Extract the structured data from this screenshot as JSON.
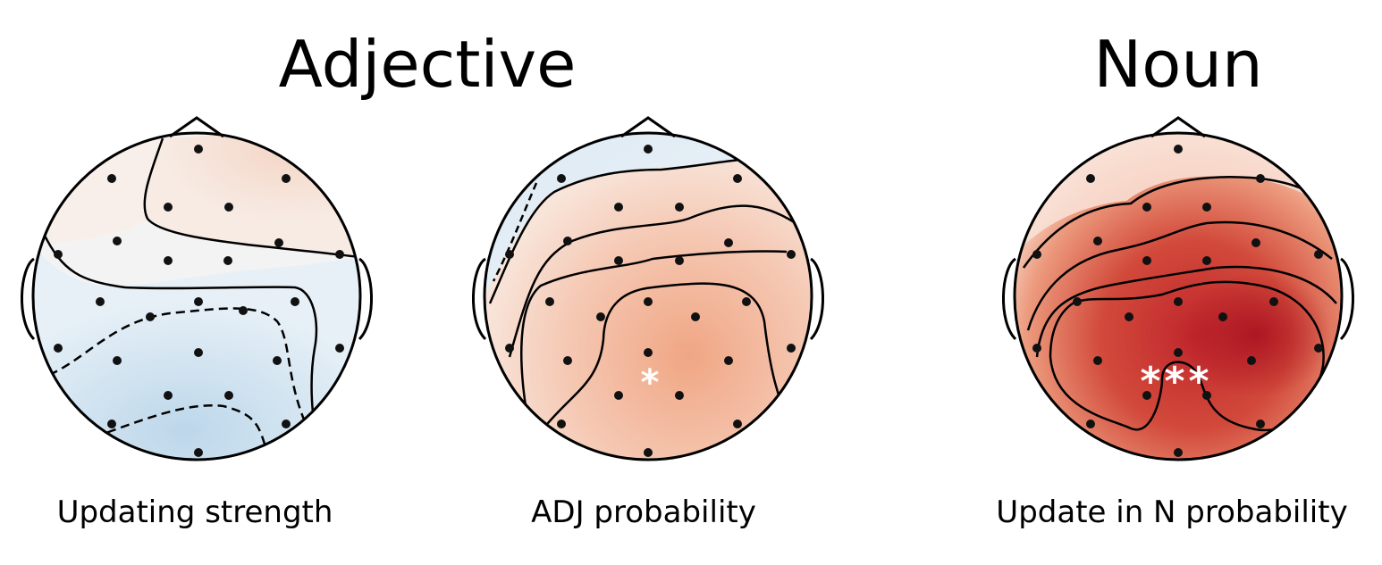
{
  "headings": {
    "adjective": "Adjective",
    "noun": "Noun"
  },
  "maps": [
    {
      "caption": "Updating strength",
      "significance": "",
      "colors": {
        "fill": "#f0f4f8"
      }
    },
    {
      "caption": "ADJ probability",
      "significance": "*",
      "colors": {
        "fill": "#f5c2a8"
      }
    },
    {
      "caption": "Update in N probability",
      "significance": "***",
      "colors": {
        "fill": "#d0463a"
      }
    }
  ],
  "colors": {
    "positive_light": "#f6d9cb",
    "positive_mid": "#ef9c7b",
    "positive_strong": "#b2182b",
    "negative_light": "#e8f0f7",
    "negative_mid": "#cfe1ef",
    "outline": "#000000"
  }
}
